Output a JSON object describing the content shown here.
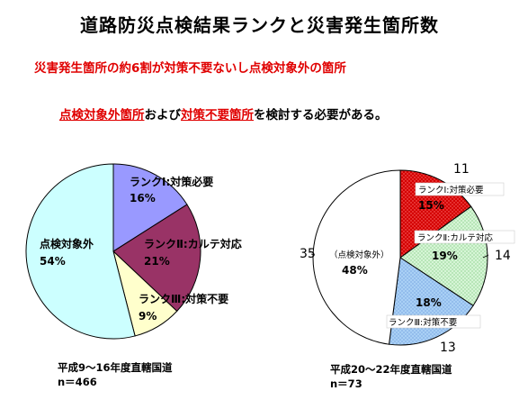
{
  "title": "道路防災点検結果ランクと災害発生箇所数",
  "lead_line1": "災害発生箇所の約6割が対策不要ないし点検対象外の箇所",
  "lead_line2": {
    "part1": "点検対象外箇所",
    "part2": "および",
    "part3": "対策不要箇所",
    "part4": "を検討する必要がある。"
  },
  "colors": {
    "rank1_left": "#9999ff",
    "rank2_left": "#993366",
    "rank3_left": "#ffffcc",
    "outside_left": "#ccffff",
    "rank1_right": "#dd0000",
    "rank2_right": "#ccffcc",
    "rank3_right": "#99ccff",
    "outside_right": "#ffffff"
  },
  "chart_data": [
    {
      "type": "pie",
      "caption": "平成9～16年度直轄国道",
      "n_label": "n＝466",
      "slices": [
        {
          "label": "ランクⅠ:対策必要",
          "pct_label": "16%",
          "value": 16
        },
        {
          "label": "ランクⅡ:カルテ対応",
          "pct_label": "21%",
          "value": 21
        },
        {
          "label": "ランクⅢ:対策不要",
          "pct_label": "9%",
          "value": 9
        },
        {
          "label": "点検対象外",
          "pct_label": "54%",
          "value": 54
        }
      ]
    },
    {
      "type": "pie",
      "caption": "平成20～22年度直轄国道",
      "n_label": "n＝73",
      "slices": [
        {
          "label": "ランクⅠ:対策必要",
          "pct_label": "15%",
          "count_label": "11",
          "value": 11
        },
        {
          "label": "ランクⅡ:カルテ対応",
          "pct_label": "19%",
          "count_label": "14",
          "value": 14
        },
        {
          "label": "ランクⅢ:対策不要",
          "pct_label": "18%",
          "count_label": "13",
          "value": 13
        },
        {
          "label": "（点検対象外）",
          "pct_label": "48%",
          "count_label": "35",
          "value": 35
        }
      ]
    }
  ]
}
